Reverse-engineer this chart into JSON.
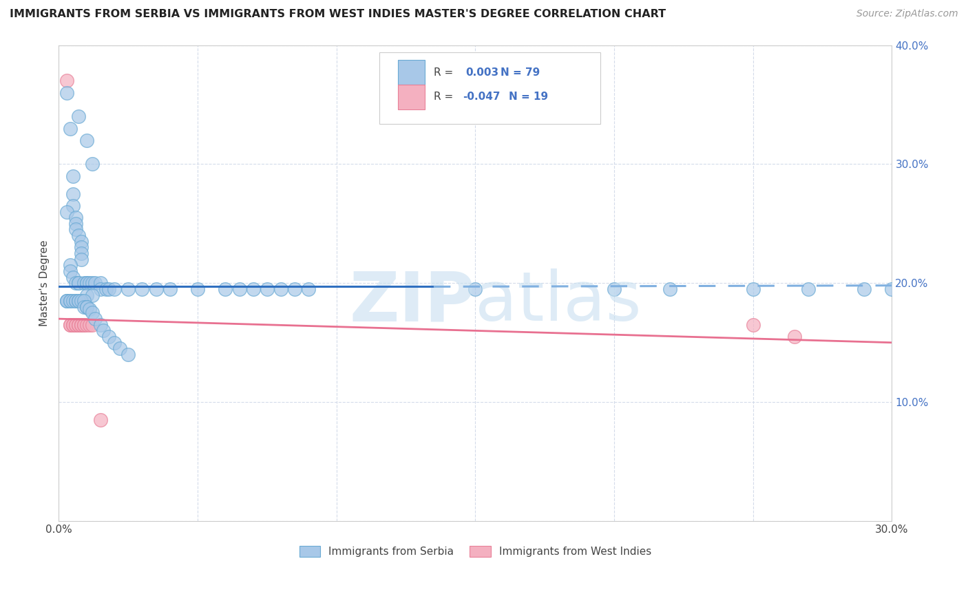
{
  "title": "IMMIGRANTS FROM SERBIA VS IMMIGRANTS FROM WEST INDIES MASTER'S DEGREE CORRELATION CHART",
  "source": "Source: ZipAtlas.com",
  "ylabel": "Master's Degree",
  "R_serbia": "0.003",
  "N_serbia": "79",
  "R_westindies": "-0.047",
  "N_westindies": "19",
  "serbia_color": "#a8c8e8",
  "serbia_edge": "#6aaad4",
  "westindies_color": "#f4b0c0",
  "westindies_edge": "#e88098",
  "line_serbia_solid_color": "#3070c0",
  "line_serbia_dash_color": "#80b0e0",
  "line_westindies_color": "#e87090",
  "background_color": "#ffffff",
  "legend_serbia": "Immigrants from Serbia",
  "legend_westindies": "Immigrants from West Indies",
  "serbia_scatter_x": [
    0.003,
    0.007,
    0.004,
    0.01,
    0.012,
    0.005,
    0.005,
    0.005,
    0.003,
    0.006,
    0.006,
    0.006,
    0.007,
    0.008,
    0.008,
    0.008,
    0.008,
    0.004,
    0.004,
    0.005,
    0.006,
    0.007,
    0.007,
    0.009,
    0.01,
    0.01,
    0.011,
    0.012,
    0.013,
    0.015,
    0.015,
    0.017,
    0.018,
    0.02,
    0.025,
    0.03,
    0.035,
    0.04,
    0.05,
    0.06,
    0.065,
    0.07,
    0.075,
    0.08,
    0.085,
    0.09,
    0.01,
    0.012,
    0.003,
    0.003,
    0.003,
    0.004,
    0.004,
    0.005,
    0.006,
    0.006,
    0.007,
    0.007,
    0.008,
    0.009,
    0.009,
    0.01,
    0.01,
    0.011,
    0.012,
    0.013,
    0.015,
    0.016,
    0.018,
    0.02,
    0.022,
    0.025,
    0.15,
    0.2,
    0.22,
    0.25,
    0.27,
    0.29,
    0.3
  ],
  "serbia_scatter_y": [
    0.36,
    0.34,
    0.33,
    0.32,
    0.3,
    0.29,
    0.275,
    0.265,
    0.26,
    0.255,
    0.25,
    0.245,
    0.24,
    0.235,
    0.23,
    0.225,
    0.22,
    0.215,
    0.21,
    0.205,
    0.2,
    0.2,
    0.2,
    0.2,
    0.2,
    0.2,
    0.2,
    0.2,
    0.2,
    0.2,
    0.195,
    0.195,
    0.195,
    0.195,
    0.195,
    0.195,
    0.195,
    0.195,
    0.195,
    0.195,
    0.195,
    0.195,
    0.195,
    0.195,
    0.195,
    0.195,
    0.19,
    0.19,
    0.185,
    0.185,
    0.185,
    0.185,
    0.185,
    0.185,
    0.185,
    0.185,
    0.185,
    0.185,
    0.185,
    0.185,
    0.18,
    0.18,
    0.18,
    0.178,
    0.175,
    0.17,
    0.165,
    0.16,
    0.155,
    0.15,
    0.145,
    0.14,
    0.195,
    0.195,
    0.195,
    0.195,
    0.195,
    0.195,
    0.195
  ],
  "westindies_scatter_x": [
    0.003,
    0.004,
    0.004,
    0.005,
    0.005,
    0.006,
    0.006,
    0.007,
    0.007,
    0.008,
    0.008,
    0.009,
    0.009,
    0.01,
    0.011,
    0.012,
    0.015,
    0.25,
    0.265
  ],
  "westindies_scatter_y": [
    0.37,
    0.165,
    0.165,
    0.165,
    0.165,
    0.165,
    0.165,
    0.165,
    0.165,
    0.165,
    0.165,
    0.165,
    0.165,
    0.165,
    0.165,
    0.165,
    0.085,
    0.165,
    0.155
  ],
  "serbia_line_x": [
    0.0,
    0.14,
    0.14,
    0.3
  ],
  "serbia_line_y": [
    0.197,
    0.197,
    0.197,
    0.198
  ],
  "wi_line_x": [
    0.0,
    0.3
  ],
  "wi_line_y": [
    0.17,
    0.15
  ],
  "xlim": [
    0.0,
    0.3
  ],
  "ylim": [
    0.0,
    0.4
  ],
  "x_ticks": [
    0.0,
    0.05,
    0.1,
    0.15,
    0.2,
    0.25,
    0.3
  ],
  "y_ticks": [
    0.0,
    0.1,
    0.2,
    0.3,
    0.4
  ],
  "grid_color": "#d0d8e8",
  "spine_color": "#cccccc"
}
